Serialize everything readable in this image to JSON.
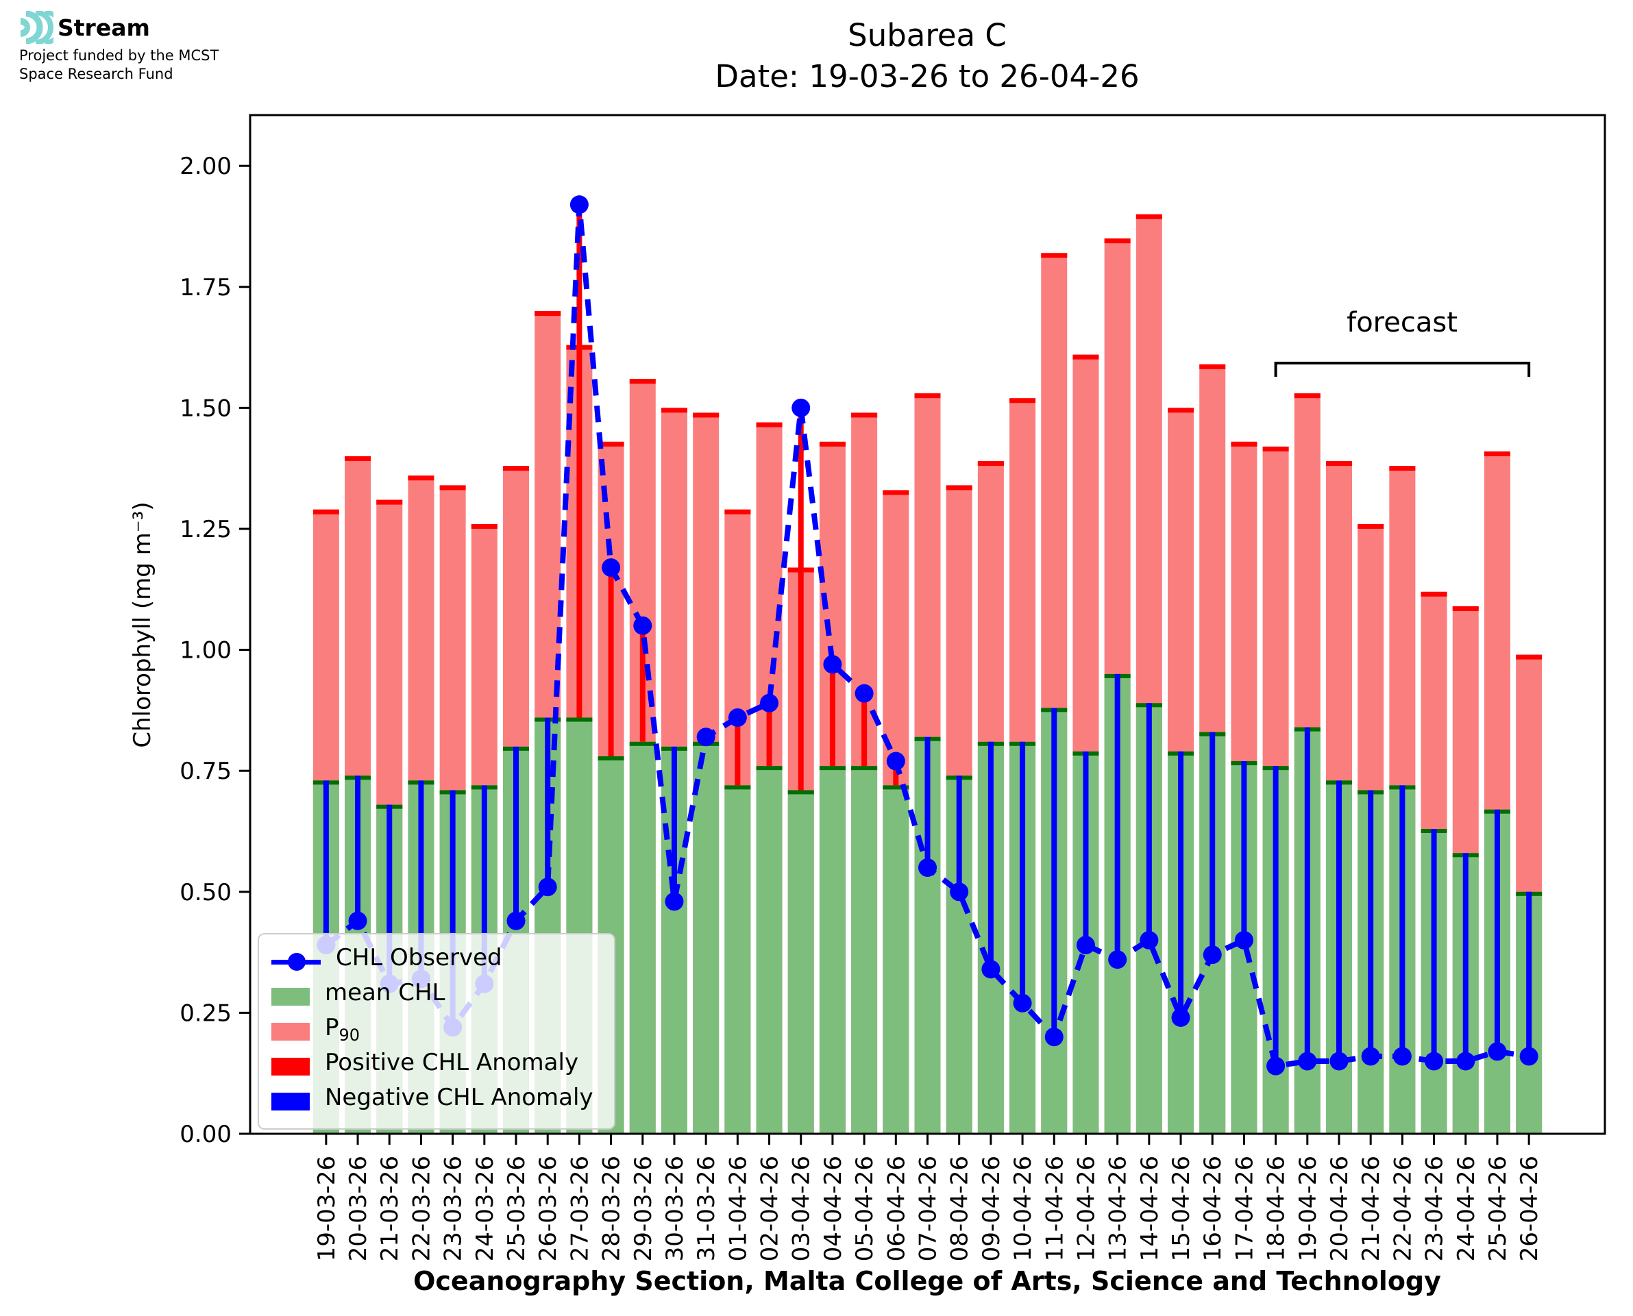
{
  "logo": {
    "brand": "Stream",
    "icon": "ripple-waves-icon",
    "icon_color": "#7fd6d3",
    "tagline_line1": "Project funded by the MCST",
    "tagline_line2": "Space Research Fund"
  },
  "title": {
    "line1": "Subarea C",
    "line2": "Date: 19-03-26 to 26-04-26"
  },
  "legend": {
    "items": [
      {
        "label": "CHL Observed",
        "sub": "",
        "marker": "line-dot",
        "color": "#0000ff"
      },
      {
        "label": "mean CHL",
        "sub": "",
        "marker": "rect",
        "color": "#7dbe7d"
      },
      {
        "label": "P",
        "sub": "90",
        "marker": "rect",
        "color": "#fb7e7e"
      },
      {
        "label": "Positive CHL Anomaly",
        "sub": "",
        "marker": "rect",
        "color": "#ff0000"
      },
      {
        "label": "Negative CHL Anomaly",
        "sub": "",
        "marker": "rect",
        "color": "#0000ff"
      }
    ]
  },
  "chart_data": {
    "type": "bar",
    "title": "Subarea C",
    "subtitle": "Date: 19-03-26 to 26-04-26",
    "xlabel": "Oceanography Section, Malta College of Arts, Science and Technology",
    "ylabel": "Chlorophyll (mg m⁻³)",
    "ylim": [
      0,
      2.105
    ],
    "yticks": [
      "0.00",
      "0.25",
      "0.50",
      "0.75",
      "1.00",
      "1.25",
      "1.50",
      "1.75",
      "2.00"
    ],
    "grid": false,
    "legend_position": "lower left",
    "categories": [
      "19-03-26",
      "20-03-26",
      "21-03-26",
      "22-03-26",
      "23-03-26",
      "24-03-26",
      "25-03-26",
      "26-03-26",
      "27-03-26",
      "28-03-26",
      "29-03-26",
      "30-03-26",
      "31-03-26",
      "01-04-26",
      "02-04-26",
      "03-04-26",
      "04-04-26",
      "05-04-26",
      "06-04-26",
      "07-04-26",
      "08-04-26",
      "09-04-26",
      "10-04-26",
      "11-04-26",
      "12-04-26",
      "13-04-26",
      "14-04-26",
      "15-04-26",
      "16-04-26",
      "17-04-26",
      "18-04-26",
      "19-04-26",
      "20-04-26",
      "21-04-26",
      "22-04-26",
      "23-04-26",
      "24-04-26",
      "25-04-26",
      "26-04-26"
    ],
    "series": [
      {
        "name": "P90",
        "type": "bar",
        "fill": "#fb7e7e",
        "edge": "#ff0000",
        "values": [
          1.29,
          1.4,
          1.31,
          1.36,
          1.34,
          1.26,
          1.38,
          1.7,
          1.63,
          1.43,
          1.56,
          1.5,
          1.49,
          1.29,
          1.47,
          1.17,
          1.43,
          1.49,
          1.33,
          1.53,
          1.34,
          1.39,
          1.52,
          1.82,
          1.61,
          1.85,
          1.9,
          1.5,
          1.59,
          1.43,
          1.42,
          1.53,
          1.39,
          1.26,
          1.38,
          1.12,
          1.09,
          1.41,
          0.99
        ]
      },
      {
        "name": "mean CHL",
        "type": "bar",
        "fill": "#7dbe7d",
        "edge": "#006e00",
        "values": [
          0.73,
          0.74,
          0.68,
          0.73,
          0.71,
          0.72,
          0.8,
          0.86,
          0.86,
          0.78,
          0.81,
          0.8,
          0.81,
          0.72,
          0.76,
          0.71,
          0.76,
          0.76,
          0.72,
          0.82,
          0.74,
          0.81,
          0.81,
          0.88,
          0.79,
          0.95,
          0.89,
          0.79,
          0.83,
          0.77,
          0.76,
          0.84,
          0.73,
          0.71,
          0.72,
          0.63,
          0.58,
          0.67,
          0.5
        ]
      },
      {
        "name": "CHL Observed",
        "type": "line",
        "style": "dashed",
        "marker": "circle",
        "color": "#0000ff",
        "values": [
          0.39,
          0.44,
          0.31,
          0.32,
          0.22,
          0.31,
          0.44,
          0.51,
          1.92,
          1.17,
          1.05,
          0.48,
          0.82,
          0.86,
          0.89,
          1.5,
          0.97,
          0.91,
          0.77,
          0.55,
          0.5,
          0.34,
          0.27,
          0.2,
          0.39,
          0.36,
          0.4,
          0.24,
          0.37,
          0.4,
          0.14,
          0.15,
          0.15,
          0.16,
          0.16,
          0.15,
          0.15,
          0.17,
          0.16
        ]
      }
    ],
    "anomaly": {
      "note": "stem drawn from mean CHL to CHL Observed for each day",
      "positive_color": "#ff0000",
      "negative_color": "#0000ff"
    },
    "forecast": {
      "label": "forecast",
      "start_category": "18-04-26",
      "end_category": "26-04-26"
    }
  }
}
